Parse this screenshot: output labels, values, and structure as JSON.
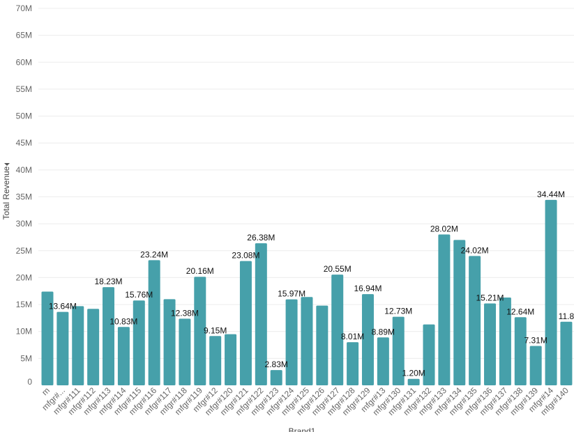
{
  "chart_data": {
    "type": "bar",
    "ylabel": "Total Revenue",
    "ylabel_icon": "caret-down-icon",
    "xlabel": "Brand1",
    "ylim": [
      0,
      70
    ],
    "yticks": [
      "0",
      "5M",
      "10M",
      "15M",
      "20M",
      "25M",
      "30M",
      "35M",
      "40M",
      "45M",
      "50M",
      "55M",
      "60M",
      "65M",
      "70M"
    ],
    "grid": true,
    "color": "#46a0aa",
    "categories": [
      "m",
      "mfgr#...",
      "mfgr#111",
      "mfgr#112",
      "mfgr#113",
      "mfgr#114",
      "mfgr#115",
      "mfgr#116",
      "mfgr#117",
      "mfgr#118",
      "mfgr#119",
      "mfgr#12",
      "mfgr#120",
      "mfgr#121",
      "mfgr#122",
      "mfgr#123",
      "mfgr#124",
      "mfgr#125",
      "mfgr#126",
      "mfgr#127",
      "mfgr#128",
      "mfgr#129",
      "mfgr#13",
      "mfgr#130",
      "mfgr#131",
      "mfgr#132",
      "mfgr#133",
      "mfgr#134",
      "mfgr#135",
      "mfgr#136",
      "mfgr#137",
      "mfgr#138",
      "mfgr#139",
      "mfgr#14",
      "mfgr#140"
    ],
    "values": [
      17.4,
      13.64,
      14.7,
      14.2,
      18.23,
      10.83,
      15.76,
      23.24,
      16.0,
      12.38,
      20.16,
      9.15,
      9.5,
      23.08,
      26.38,
      2.83,
      15.97,
      16.4,
      14.8,
      20.55,
      8.01,
      16.94,
      8.89,
      12.73,
      1.2,
      11.3,
      28.02,
      27.0,
      24.02,
      15.21,
      16.3,
      12.64,
      7.31,
      34.44,
      11.8
    ],
    "data_labels": [
      "",
      "13.64M",
      "",
      "",
      "18.23M",
      "10.83M",
      "15.76M",
      "23.24M",
      "",
      "12.38M",
      "20.16M",
      "9.15M",
      "",
      "23.08M",
      "26.38M",
      "2.83M",
      "15.97M",
      "",
      "",
      "20.55M",
      "8.01M",
      "16.94M",
      "8.89M",
      "12.73M",
      "1.20M",
      "",
      "28.02M",
      "",
      "24.02M",
      "15.21M",
      "",
      "12.64M",
      "7.31M",
      "34.44M",
      "11.8"
    ]
  }
}
